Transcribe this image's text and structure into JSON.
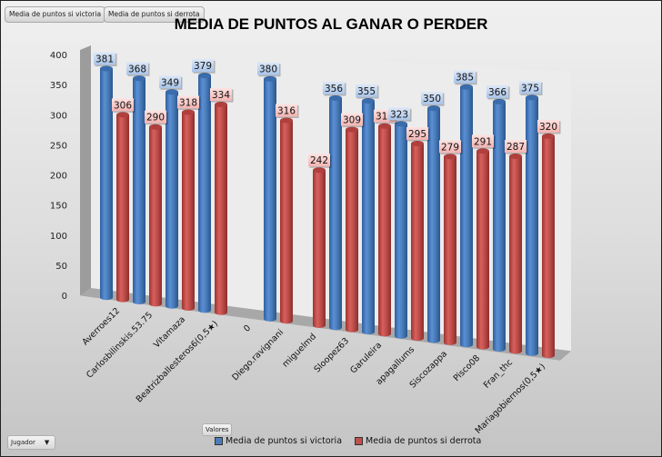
{
  "field_buttons": {
    "victoria": "Media de puntos si victoria",
    "derrota": "Media de puntos si derrota"
  },
  "filters": {
    "values_label": "Valores",
    "axis_field_label": "Jugador",
    "axis_field_caret": "▼"
  },
  "chart_data": {
    "type": "bar",
    "subtype": "3d-clustered-cylinder",
    "title": "MEDIA DE PUNTOS AL GANAR O PERDER",
    "xlabel": "",
    "ylabel": "",
    "ylim": [
      0,
      400
    ],
    "yticks": [
      "0",
      "50",
      "100",
      "150",
      "200",
      "250",
      "300",
      "350",
      "400"
    ],
    "grid": false,
    "legend_position": "bottom",
    "categories": [
      "Averroes12",
      "Carlosbilinskis.53.75",
      "Vitamaza",
      "Beatrizballesteros6(0,5★)",
      "0",
      "Diego.ravignani",
      "miguelmd",
      "Sloopez63",
      "Garuleira",
      "apagallums",
      "Siscozappa",
      "Pisco08",
      "Fran_thc",
      "Mariagobiernos(0,5★)"
    ],
    "series": [
      {
        "name": "Media de puntos si victoria",
        "color": "#4a7ebb",
        "label_bg": "#c6d9f1",
        "values": [
          381,
          368,
          349,
          379,
          null,
          380,
          null,
          356,
          355,
          323,
          350,
          385,
          366,
          375
        ]
      },
      {
        "name": "Media de puntos si derrota",
        "color": "#c0504d",
        "label_bg": "#f9cdcb",
        "values": [
          306,
          290,
          318,
          334,
          null,
          316,
          242,
          309,
          318,
          295,
          279,
          291,
          287,
          320
        ]
      }
    ]
  }
}
